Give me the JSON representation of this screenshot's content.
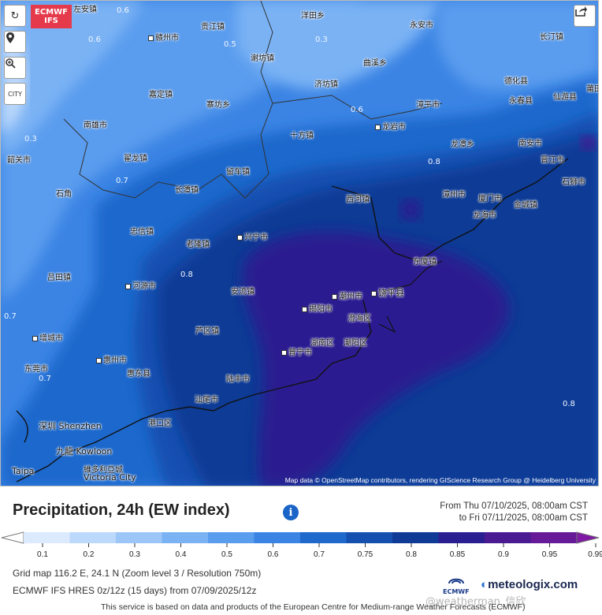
{
  "header": {
    "brand_line1": "ECMWF",
    "brand_line2": "IFS",
    "controls": [
      "refresh-icon",
      "location-pin-icon",
      "zoom-search-icon",
      "city-toggle"
    ],
    "city_label": "CITY",
    "share_icon": "share-icon"
  },
  "map": {
    "attribution": "Map data © OpenStreetMap contributors, rendering GIScience Research Group @ Heidelberg University",
    "places": [
      {
        "name": "左安镇"
      },
      {
        "name": "赣州市"
      },
      {
        "name": "贡江镇"
      },
      {
        "name": "洋田乡"
      },
      {
        "name": "永安市"
      },
      {
        "name": "长汀镇"
      },
      {
        "name": "谢坊镇"
      },
      {
        "name": "曲溪乡"
      },
      {
        "name": "德化县"
      },
      {
        "name": "嘉定镇"
      },
      {
        "name": "济坊镇"
      },
      {
        "name": "永春县"
      },
      {
        "name": "仙游县"
      },
      {
        "name": "南雄市"
      },
      {
        "name": "寨坊乡"
      },
      {
        "name": "漳平市"
      },
      {
        "name": "莆田"
      },
      {
        "name": "龙岩市"
      },
      {
        "name": "十方镇"
      },
      {
        "name": "龙潭乡"
      },
      {
        "name": "南安市"
      },
      {
        "name": "韶关市"
      },
      {
        "name": "翟龙镇"
      },
      {
        "name": "留车镇"
      },
      {
        "name": "晋江市"
      },
      {
        "name": "石狮市"
      },
      {
        "name": "石角"
      },
      {
        "name": "长潭镇"
      },
      {
        "name": "西河镇"
      },
      {
        "name": "漳州市"
      },
      {
        "name": "厦门市"
      },
      {
        "name": "金城镇"
      },
      {
        "name": "龙海市"
      },
      {
        "name": "忠信镇"
      },
      {
        "name": "兴宁市"
      },
      {
        "name": "老隆镇"
      },
      {
        "name": "东厦镇"
      },
      {
        "name": "吕田镇"
      },
      {
        "name": "河源市"
      },
      {
        "name": "安流镇"
      },
      {
        "name": "潮州市"
      },
      {
        "name": "饶平县"
      },
      {
        "name": "揭阳市"
      },
      {
        "name": "澄海区"
      },
      {
        "name": "芦区镇"
      },
      {
        "name": "湖南区"
      },
      {
        "name": "潮阳区"
      },
      {
        "name": "增城市"
      },
      {
        "name": "惠州市"
      },
      {
        "name": "普宁市"
      },
      {
        "name": "东莞市"
      },
      {
        "name": "惠东县"
      },
      {
        "name": "陆丰市"
      },
      {
        "name": "汕尾市"
      },
      {
        "name": "深圳 Shenzhen"
      },
      {
        "name": "港口区"
      },
      {
        "name": "九龍 Kowloon"
      },
      {
        "name": "維多利亞城"
      },
      {
        "name": "Victoria City"
      },
      {
        "name": "Taipa"
      }
    ],
    "contour_labels": [
      "0.6",
      "0.6",
      "0.5",
      "0.3",
      "0.6",
      "0.3",
      "0.7",
      "0.8",
      "0.8",
      "0.7",
      "0.8",
      "0.7"
    ]
  },
  "legend": {
    "title": "Precipitation, 24h (EW index)",
    "info_icon": "info-icon",
    "from": "From Thu 07/10/2025, 08:00am CST",
    "to": "to Fri 07/11/2025, 08:00am CST",
    "ticks": [
      "0.1",
      "0.2",
      "0.3",
      "0.4",
      "0.5",
      "0.6",
      "0.7",
      "0.75",
      "0.8",
      "0.85",
      "0.9",
      "0.95",
      "0.99"
    ],
    "colors": [
      "#ffffff",
      "#dbeafd",
      "#bcd8fb",
      "#9cc6f8",
      "#7ab2f4",
      "#5a9cee",
      "#3b84e4",
      "#1f68cc",
      "#1550b0",
      "#0f3a95",
      "#2a1f90",
      "#4a1a92",
      "#661a98",
      "#7e1aa3"
    ]
  },
  "footer": {
    "grid": "Grid map 116.2 E, 24.1 N (Zoom level 3 / Resolution 750m)",
    "model": "ECMWF IFS HRES 0z/12z (15 days) from 07/09/2025/12z",
    "ecmwf_logo": "ECMWF",
    "meteologix": "meteologix.com",
    "watermark": "@weatherman_信欣",
    "disclaimer": "This service is based on data and products of the European Centre for Medium-range Weather Forecasts (ECMWF)"
  }
}
